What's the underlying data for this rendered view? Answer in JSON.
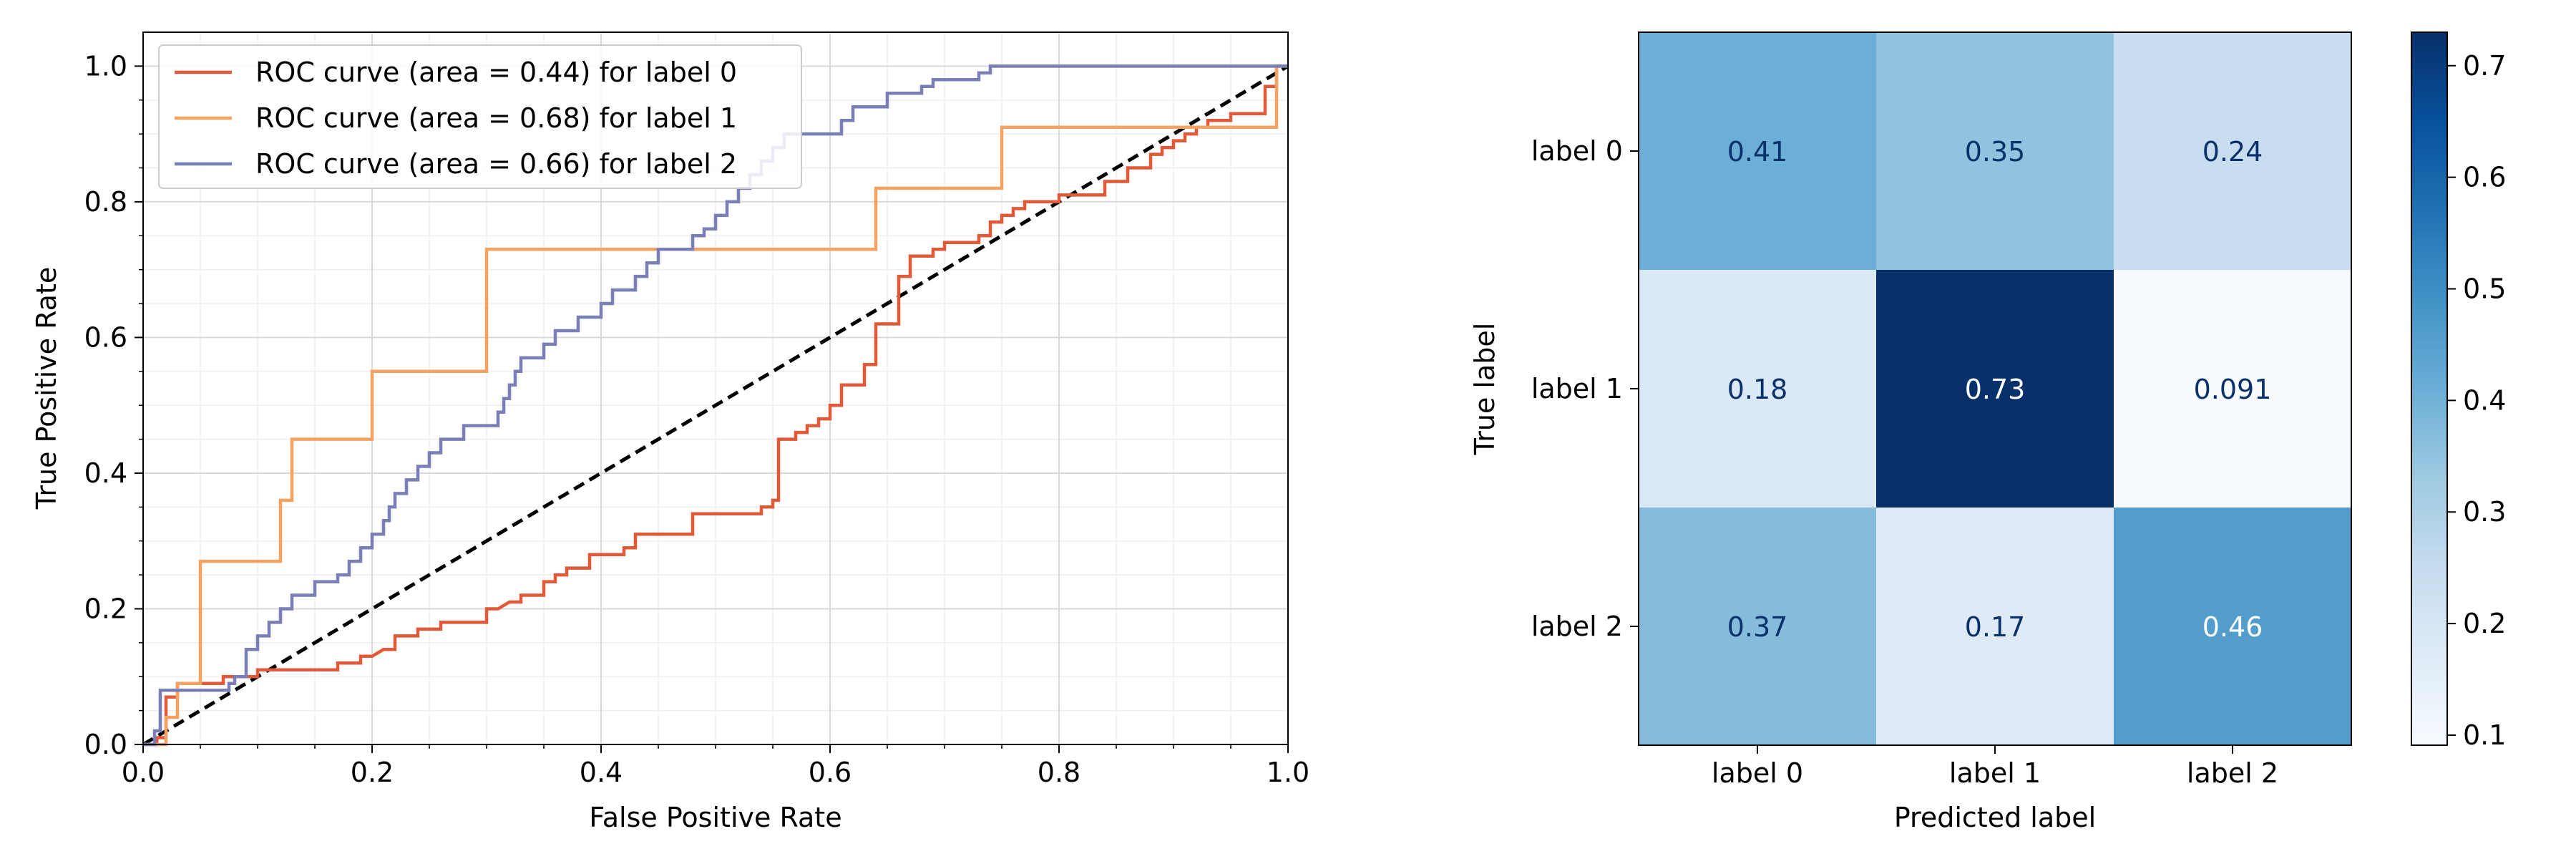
{
  "chart_data": [
    {
      "type": "line",
      "title": "",
      "xlabel": "False Positive Rate",
      "ylabel": "True Positive Rate",
      "xlim": [
        0.0,
        1.0
      ],
      "ylim": [
        0.0,
        1.05
      ],
      "xticks": [
        "0.0",
        "0.2",
        "0.4",
        "0.6",
        "0.8",
        "1.0"
      ],
      "yticks": [
        "0.0",
        "0.2",
        "0.4",
        "0.6",
        "0.8",
        "1.0"
      ],
      "grid": true,
      "minor_grid": true,
      "legend_position": "upper-left",
      "series": [
        {
          "name": "ROC curve (area = 0.44) for label 0",
          "color": "#e05a3a",
          "x": [
            0,
            0.012,
            0.012,
            0.02,
            0.02,
            0.03,
            0.03,
            0.07,
            0.07,
            0.08,
            0.09,
            0.1,
            0.1,
            0.12,
            0.12,
            0.17,
            0.17,
            0.19,
            0.19,
            0.2,
            0.21,
            0.22,
            0.22,
            0.24,
            0.24,
            0.26,
            0.26,
            0.3,
            0.3,
            0.31,
            0.32,
            0.33,
            0.33,
            0.35,
            0.35,
            0.36,
            0.36,
            0.37,
            0.37,
            0.39,
            0.39,
            0.42,
            0.42,
            0.43,
            0.43,
            0.48,
            0.48,
            0.54,
            0.54,
            0.55,
            0.55,
            0.555,
            0.555,
            0.57,
            0.57,
            0.58,
            0.58,
            0.59,
            0.59,
            0.6,
            0.6,
            0.61,
            0.61,
            0.63,
            0.63,
            0.64,
            0.64,
            0.66,
            0.66,
            0.67,
            0.67,
            0.69,
            0.69,
            0.7,
            0.7,
            0.73,
            0.73,
            0.74,
            0.74,
            0.75,
            0.75,
            0.76,
            0.76,
            0.77,
            0.77,
            0.8,
            0.8,
            0.84,
            0.84,
            0.86,
            0.86,
            0.88,
            0.88,
            0.89,
            0.89,
            0.9,
            0.9,
            0.91,
            0.91,
            0.92,
            0.92,
            0.93,
            0.93,
            0.95,
            0.95,
            0.98,
            0.98,
            0.99,
            0.99,
            1.0
          ],
          "y": [
            0,
            0,
            0.01,
            0.01,
            0.07,
            0.07,
            0.09,
            0.09,
            0.1,
            0.1,
            0.1,
            0.1,
            0.11,
            0.11,
            0.11,
            0.11,
            0.12,
            0.12,
            0.13,
            0.13,
            0.14,
            0.14,
            0.16,
            0.16,
            0.17,
            0.17,
            0.18,
            0.18,
            0.2,
            0.2,
            0.21,
            0.21,
            0.22,
            0.22,
            0.24,
            0.24,
            0.25,
            0.25,
            0.26,
            0.26,
            0.28,
            0.28,
            0.29,
            0.29,
            0.31,
            0.31,
            0.34,
            0.34,
            0.35,
            0.35,
            0.36,
            0.36,
            0.45,
            0.45,
            0.46,
            0.46,
            0.47,
            0.47,
            0.48,
            0.48,
            0.5,
            0.5,
            0.53,
            0.53,
            0.56,
            0.56,
            0.62,
            0.62,
            0.69,
            0.69,
            0.72,
            0.72,
            0.73,
            0.73,
            0.74,
            0.74,
            0.75,
            0.75,
            0.77,
            0.77,
            0.78,
            0.78,
            0.79,
            0.79,
            0.8,
            0.8,
            0.81,
            0.81,
            0.83,
            0.83,
            0.85,
            0.85,
            0.87,
            0.87,
            0.88,
            0.88,
            0.89,
            0.89,
            0.9,
            0.9,
            0.91,
            0.91,
            0.92,
            0.92,
            0.93,
            0.93,
            0.97,
            0.97,
            1.0,
            1.0
          ]
        },
        {
          "name": "ROC curve (area = 0.68) for label 1",
          "color": "#f4a261",
          "x": [
            0,
            0.02,
            0.02,
            0.03,
            0.03,
            0.05,
            0.05,
            0.12,
            0.12,
            0.13,
            0.13,
            0.2,
            0.2,
            0.3,
            0.3,
            0.64,
            0.64,
            0.74,
            0.74,
            0.75,
            0.75,
            0.8,
            0.8,
            0.81,
            0.81,
            0.83,
            0.83,
            0.86,
            0.86,
            0.99,
            0.99,
            1.0
          ],
          "y": [
            0,
            0,
            0.04,
            0.04,
            0.09,
            0.09,
            0.27,
            0.27,
            0.36,
            0.36,
            0.45,
            0.45,
            0.55,
            0.55,
            0.73,
            0.73,
            0.82,
            0.82,
            0.82,
            0.82,
            0.91,
            0.91,
            0.91,
            0.91,
            0.91,
            0.91,
            0.91,
            0.91,
            0.91,
            0.91,
            1.0,
            1.0
          ]
        },
        {
          "name": "ROC curve (area = 0.66) for label 2",
          "color": "#7b7fb8",
          "x": [
            0,
            0.01,
            0.01,
            0.015,
            0.015,
            0.07,
            0.07,
            0.075,
            0.075,
            0.08,
            0.08,
            0.09,
            0.09,
            0.1,
            0.1,
            0.11,
            0.11,
            0.12,
            0.12,
            0.13,
            0.13,
            0.15,
            0.15,
            0.17,
            0.17,
            0.18,
            0.18,
            0.19,
            0.19,
            0.2,
            0.2,
            0.21,
            0.21,
            0.215,
            0.215,
            0.22,
            0.22,
            0.23,
            0.23,
            0.24,
            0.24,
            0.25,
            0.25,
            0.26,
            0.26,
            0.28,
            0.28,
            0.31,
            0.31,
            0.315,
            0.315,
            0.32,
            0.32,
            0.325,
            0.325,
            0.33,
            0.33,
            0.35,
            0.35,
            0.36,
            0.36,
            0.38,
            0.38,
            0.4,
            0.4,
            0.41,
            0.41,
            0.43,
            0.43,
            0.44,
            0.44,
            0.45,
            0.45,
            0.48,
            0.48,
            0.49,
            0.49,
            0.5,
            0.5,
            0.51,
            0.51,
            0.52,
            0.52,
            0.53,
            0.53,
            0.54,
            0.54,
            0.55,
            0.55,
            0.56,
            0.56,
            0.61,
            0.61,
            0.62,
            0.62,
            0.64,
            0.64,
            0.65,
            0.65,
            0.66,
            0.66,
            0.68,
            0.68,
            0.69,
            0.69,
            0.73,
            0.73,
            0.74,
            0.74,
            0.77,
            0.77,
            0.82,
            0.82,
            0.86,
            0.86,
            0.91,
            0.91,
            0.95,
            0.95,
            0.97,
            0.97,
            0.99,
            0.99,
            1.0
          ],
          "y": [
            0,
            0,
            0.02,
            0.02,
            0.08,
            0.08,
            0.08,
            0.08,
            0.09,
            0.09,
            0.1,
            0.1,
            0.14,
            0.14,
            0.16,
            0.16,
            0.18,
            0.18,
            0.2,
            0.2,
            0.22,
            0.22,
            0.24,
            0.24,
            0.25,
            0.25,
            0.27,
            0.27,
            0.29,
            0.29,
            0.31,
            0.31,
            0.33,
            0.33,
            0.35,
            0.35,
            0.37,
            0.37,
            0.39,
            0.39,
            0.41,
            0.41,
            0.43,
            0.43,
            0.45,
            0.45,
            0.47,
            0.47,
            0.49,
            0.49,
            0.51,
            0.51,
            0.53,
            0.53,
            0.55,
            0.55,
            0.57,
            0.57,
            0.59,
            0.59,
            0.61,
            0.61,
            0.63,
            0.63,
            0.65,
            0.65,
            0.67,
            0.67,
            0.69,
            0.69,
            0.71,
            0.71,
            0.73,
            0.73,
            0.75,
            0.75,
            0.76,
            0.76,
            0.78,
            0.78,
            0.8,
            0.8,
            0.82,
            0.82,
            0.84,
            0.84,
            0.86,
            0.86,
            0.88,
            0.88,
            0.9,
            0.9,
            0.92,
            0.92,
            0.94,
            0.94,
            0.94,
            0.94,
            0.96,
            0.96,
            0.96,
            0.96,
            0.97,
            0.97,
            0.98,
            0.98,
            0.99,
            0.99,
            1.0,
            1.0,
            1.0,
            1.0,
            1.0,
            1.0,
            1.0,
            1.0,
            1.0,
            1.0,
            1.0,
            1.0,
            1.0,
            1.0,
            1.0,
            1.0
          ]
        }
      ],
      "reference_line": {
        "x": [
          0,
          1
        ],
        "y": [
          0,
          1
        ],
        "style": "dashed",
        "color": "#000000"
      }
    },
    {
      "type": "heatmap",
      "title": "",
      "xlabel": "Predicted label",
      "ylabel": "True label",
      "x_categories": [
        "label 0",
        "label 1",
        "label 2"
      ],
      "y_categories": [
        "label 0",
        "label 1",
        "label 2"
      ],
      "values": [
        [
          0.41,
          0.35,
          0.24
        ],
        [
          0.18,
          0.73,
          0.091
        ],
        [
          0.37,
          0.17,
          0.46
        ]
      ],
      "value_labels": [
        [
          "0.41",
          "0.35",
          "0.24"
        ],
        [
          "0.18",
          "0.73",
          "0.091"
        ],
        [
          "0.37",
          "0.17",
          "0.46"
        ]
      ],
      "colormap": "Blues",
      "colorbar": {
        "range": [
          0.091,
          0.73
        ],
        "ticks": [
          0.1,
          0.2,
          0.3,
          0.4,
          0.5,
          0.6,
          0.7
        ],
        "tick_labels": [
          "0.1",
          "0.2",
          "0.3",
          "0.4",
          "0.5",
          "0.6",
          "0.7"
        ]
      }
    }
  ]
}
